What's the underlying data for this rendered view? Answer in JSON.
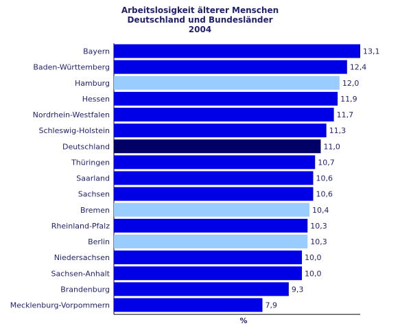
{
  "colors": {
    "bar_default": "#0000e6",
    "bar_highlight_city": "#99ccff",
    "bar_national": "#000066",
    "axis": "#000000",
    "text": "#1f1f6e"
  },
  "chart_data": {
    "type": "bar",
    "orientation": "horizontal",
    "title": [
      "Arbeitslosigkeit älterer Menschen",
      "Deutschland und Bundesländer",
      "2004"
    ],
    "xlabel": "%",
    "ylabel": "",
    "xlim": [
      0,
      13.1
    ],
    "grid": false,
    "legend": "none",
    "categories": [
      "Bayern",
      "Baden-Württemberg",
      "Hamburg",
      "Hessen",
      "Nordrhein-Westfalen",
      "Schleswig-Holstein",
      "Deutschland",
      "Thüringen",
      "Saarland",
      "Sachsen",
      "Bremen",
      "Rheinland-Pfalz",
      "Berlin",
      "Niedersachsen",
      "Sachsen-Anhalt",
      "Brandenburg",
      "Mecklenburg-Vorpommern"
    ],
    "values": [
      13.1,
      12.4,
      12.0,
      11.9,
      11.7,
      11.3,
      11.0,
      10.7,
      10.6,
      10.6,
      10.4,
      10.3,
      10.3,
      10.0,
      10.0,
      9.3,
      7.9
    ],
    "value_labels": [
      "13,1",
      "12,4",
      "12,0",
      "11,9",
      "11,7",
      "11,3",
      "11,0",
      "10,7",
      "10,6",
      "10,6",
      "10,4",
      "10,3",
      "10,3",
      "10,0",
      "10,0",
      "9,3",
      "7,9"
    ],
    "bar_colors": [
      "default",
      "default",
      "highlight_city",
      "default",
      "default",
      "default",
      "national",
      "default",
      "default",
      "default",
      "highlight_city",
      "default",
      "highlight_city",
      "default",
      "default",
      "default",
      "default"
    ]
  }
}
